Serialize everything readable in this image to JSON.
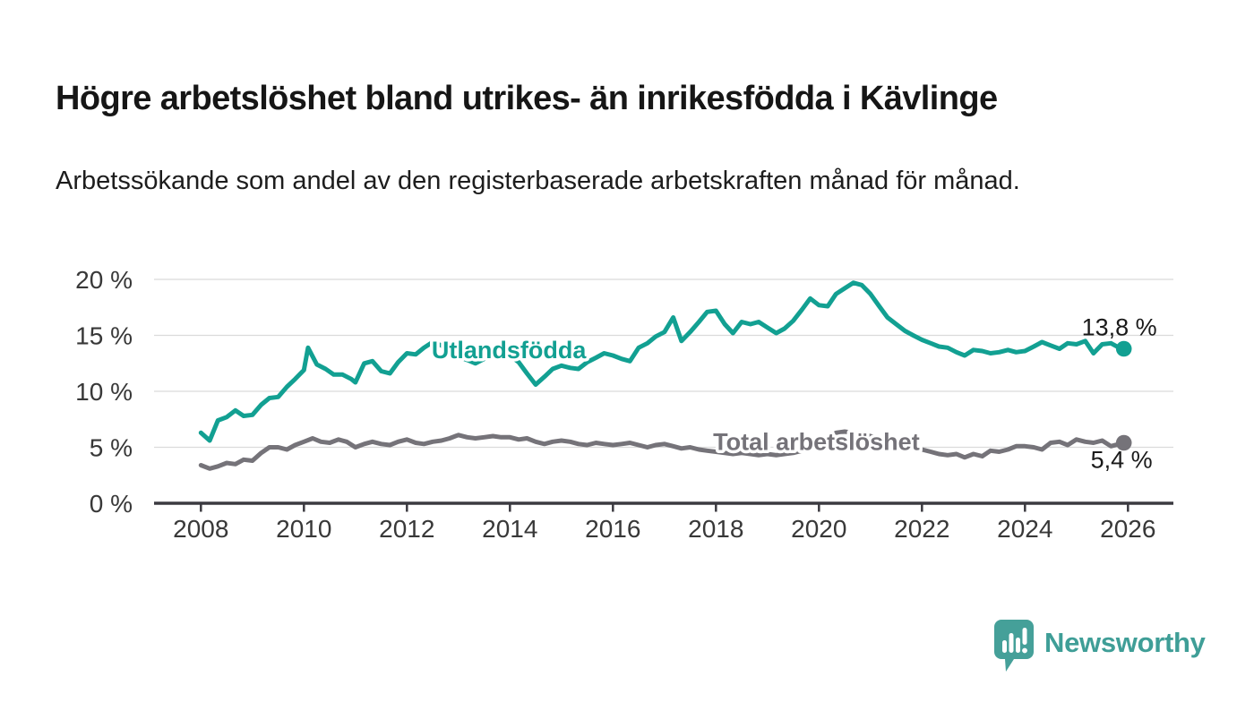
{
  "header": {
    "title": "Högre arbetslöshet bland utrikes- än inrikesfödda i Kävlinge",
    "subtitle": "Arbetssökande som andel av den registerbaserade arbetskraften månad för månad."
  },
  "chart_data": {
    "type": "line",
    "title": "Högre arbetslöshet bland utrikes- än inrikesfödda i Kävlinge",
    "xlabel": "",
    "ylabel": "Arbetssökande som andel av den registerbaserade arbetskraften",
    "xlim": [
      2007.1,
      2026.9
    ],
    "ylim": [
      0,
      20
    ],
    "grid": "horizontal",
    "legend_position": "inline-labels",
    "y_ticks": [
      {
        "value": 0,
        "label": "0 %"
      },
      {
        "value": 5,
        "label": "5 %"
      },
      {
        "value": 10,
        "label": "10 %"
      },
      {
        "value": 15,
        "label": "15 %"
      },
      {
        "value": 20,
        "label": "20 %"
      }
    ],
    "x_ticks": [
      {
        "value": 2008,
        "label": "2008"
      },
      {
        "value": 2010,
        "label": "2010"
      },
      {
        "value": 2012,
        "label": "2012"
      },
      {
        "value": 2014,
        "label": "2014"
      },
      {
        "value": 2016,
        "label": "2016"
      },
      {
        "value": 2018,
        "label": "2018"
      },
      {
        "value": 2020,
        "label": "2020"
      },
      {
        "value": 2022,
        "label": "2022"
      },
      {
        "value": 2024,
        "label": "2024"
      },
      {
        "value": 2026,
        "label": "2026"
      }
    ],
    "series": [
      {
        "name": "Utlandsfödda",
        "color": "#12a092",
        "end_label": "13,8 %",
        "end_value": 13.8,
        "label_pos": {
          "x": 2013.98,
          "y": 13.7
        },
        "points": [
          [
            2008.0,
            6.3
          ],
          [
            2008.17,
            5.6
          ],
          [
            2008.33,
            7.4
          ],
          [
            2008.5,
            7.7
          ],
          [
            2008.67,
            8.3
          ],
          [
            2008.83,
            7.8
          ],
          [
            2009.0,
            7.9
          ],
          [
            2009.17,
            8.8
          ],
          [
            2009.33,
            9.4
          ],
          [
            2009.5,
            9.5
          ],
          [
            2009.67,
            10.4
          ],
          [
            2009.83,
            11.1
          ],
          [
            2010.0,
            11.9
          ],
          [
            2010.08,
            13.9
          ],
          [
            2010.25,
            12.4
          ],
          [
            2010.42,
            12.0
          ],
          [
            2010.58,
            11.5
          ],
          [
            2010.75,
            11.5
          ],
          [
            2010.92,
            11.1
          ],
          [
            2011.0,
            10.8
          ],
          [
            2011.17,
            12.5
          ],
          [
            2011.33,
            12.7
          ],
          [
            2011.5,
            11.8
          ],
          [
            2011.67,
            11.6
          ],
          [
            2011.83,
            12.6
          ],
          [
            2012.0,
            13.4
          ],
          [
            2012.17,
            13.3
          ],
          [
            2012.33,
            13.9
          ],
          [
            2012.5,
            14.4
          ],
          [
            2012.67,
            14.1
          ],
          [
            2012.83,
            13.6
          ],
          [
            2013.0,
            13.1
          ],
          [
            2013.17,
            12.8
          ],
          [
            2013.33,
            12.5
          ],
          [
            2013.5,
            12.9
          ],
          [
            2013.67,
            13.3
          ],
          [
            2013.83,
            13.4
          ],
          [
            2014.0,
            13.2
          ],
          [
            2014.17,
            12.6
          ],
          [
            2014.33,
            11.6
          ],
          [
            2014.5,
            10.6
          ],
          [
            2014.67,
            11.3
          ],
          [
            2014.83,
            12.0
          ],
          [
            2015.0,
            12.3
          ],
          [
            2015.17,
            12.1
          ],
          [
            2015.33,
            12.0
          ],
          [
            2015.5,
            12.6
          ],
          [
            2015.67,
            13.0
          ],
          [
            2015.83,
            13.4
          ],
          [
            2016.0,
            13.2
          ],
          [
            2016.17,
            12.9
          ],
          [
            2016.33,
            12.7
          ],
          [
            2016.5,
            13.9
          ],
          [
            2016.67,
            14.3
          ],
          [
            2016.83,
            14.9
          ],
          [
            2017.0,
            15.3
          ],
          [
            2017.17,
            16.6
          ],
          [
            2017.33,
            14.5
          ],
          [
            2017.5,
            15.3
          ],
          [
            2017.67,
            16.2
          ],
          [
            2017.83,
            17.1
          ],
          [
            2018.0,
            17.2
          ],
          [
            2018.17,
            16.0
          ],
          [
            2018.33,
            15.2
          ],
          [
            2018.5,
            16.2
          ],
          [
            2018.67,
            16.0
          ],
          [
            2018.83,
            16.2
          ],
          [
            2019.0,
            15.7
          ],
          [
            2019.17,
            15.2
          ],
          [
            2019.33,
            15.6
          ],
          [
            2019.5,
            16.3
          ],
          [
            2019.67,
            17.3
          ],
          [
            2019.83,
            18.3
          ],
          [
            2020.0,
            17.7
          ],
          [
            2020.17,
            17.6
          ],
          [
            2020.33,
            18.7
          ],
          [
            2020.5,
            19.2
          ],
          [
            2020.67,
            19.7
          ],
          [
            2020.83,
            19.5
          ],
          [
            2021.0,
            18.7
          ],
          [
            2021.17,
            17.6
          ],
          [
            2021.33,
            16.6
          ],
          [
            2021.5,
            16.0
          ],
          [
            2021.67,
            15.4
          ],
          [
            2021.83,
            15.0
          ],
          [
            2022.0,
            14.6
          ],
          [
            2022.17,
            14.3
          ],
          [
            2022.33,
            14.0
          ],
          [
            2022.5,
            13.9
          ],
          [
            2022.67,
            13.5
          ],
          [
            2022.83,
            13.2
          ],
          [
            2023.0,
            13.7
          ],
          [
            2023.17,
            13.6
          ],
          [
            2023.33,
            13.4
          ],
          [
            2023.5,
            13.5
          ],
          [
            2023.67,
            13.7
          ],
          [
            2023.83,
            13.5
          ],
          [
            2024.0,
            13.6
          ],
          [
            2024.17,
            14.0
          ],
          [
            2024.33,
            14.4
          ],
          [
            2024.5,
            14.1
          ],
          [
            2024.67,
            13.8
          ],
          [
            2024.83,
            14.3
          ],
          [
            2025.0,
            14.2
          ],
          [
            2025.17,
            14.5
          ],
          [
            2025.33,
            13.4
          ],
          [
            2025.5,
            14.2
          ],
          [
            2025.67,
            14.3
          ],
          [
            2025.83,
            13.9
          ],
          [
            2025.92,
            13.8
          ]
        ]
      },
      {
        "name": "Total arbetslöshet",
        "color": "#757379",
        "end_label": "5,4 %",
        "end_value": 5.4,
        "label_pos": {
          "x": 2019.95,
          "y": 5.5
        },
        "points": [
          [
            2008.0,
            3.4
          ],
          [
            2008.17,
            3.1
          ],
          [
            2008.33,
            3.3
          ],
          [
            2008.5,
            3.6
          ],
          [
            2008.67,
            3.5
          ],
          [
            2008.83,
            3.9
          ],
          [
            2009.0,
            3.8
          ],
          [
            2009.17,
            4.5
          ],
          [
            2009.33,
            5.0
          ],
          [
            2009.5,
            5.0
          ],
          [
            2009.67,
            4.8
          ],
          [
            2009.83,
            5.2
          ],
          [
            2010.0,
            5.5
          ],
          [
            2010.17,
            5.8
          ],
          [
            2010.33,
            5.5
          ],
          [
            2010.5,
            5.4
          ],
          [
            2010.67,
            5.7
          ],
          [
            2010.83,
            5.5
          ],
          [
            2011.0,
            5.0
          ],
          [
            2011.17,
            5.3
          ],
          [
            2011.33,
            5.5
          ],
          [
            2011.5,
            5.3
          ],
          [
            2011.67,
            5.2
          ],
          [
            2011.83,
            5.5
          ],
          [
            2012.0,
            5.7
          ],
          [
            2012.17,
            5.4
          ],
          [
            2012.33,
            5.3
          ],
          [
            2012.5,
            5.5
          ],
          [
            2012.67,
            5.6
          ],
          [
            2012.83,
            5.8
          ],
          [
            2013.0,
            6.1
          ],
          [
            2013.17,
            5.9
          ],
          [
            2013.33,
            5.8
          ],
          [
            2013.5,
            5.9
          ],
          [
            2013.67,
            6.0
          ],
          [
            2013.83,
            5.9
          ],
          [
            2014.0,
            5.9
          ],
          [
            2014.17,
            5.7
          ],
          [
            2014.33,
            5.8
          ],
          [
            2014.5,
            5.5
          ],
          [
            2014.67,
            5.3
          ],
          [
            2014.83,
            5.5
          ],
          [
            2015.0,
            5.6
          ],
          [
            2015.17,
            5.5
          ],
          [
            2015.33,
            5.3
          ],
          [
            2015.5,
            5.2
          ],
          [
            2015.67,
            5.4
          ],
          [
            2015.83,
            5.3
          ],
          [
            2016.0,
            5.2
          ],
          [
            2016.17,
            5.3
          ],
          [
            2016.33,
            5.4
          ],
          [
            2016.5,
            5.2
          ],
          [
            2016.67,
            5.0
          ],
          [
            2016.83,
            5.2
          ],
          [
            2017.0,
            5.3
          ],
          [
            2017.17,
            5.1
          ],
          [
            2017.33,
            4.9
          ],
          [
            2017.5,
            5.0
          ],
          [
            2017.67,
            4.8
          ],
          [
            2017.83,
            4.7
          ],
          [
            2018.0,
            4.6
          ],
          [
            2018.17,
            4.5
          ],
          [
            2018.33,
            4.4
          ],
          [
            2018.5,
            4.5
          ],
          [
            2018.67,
            4.4
          ],
          [
            2018.83,
            4.3
          ],
          [
            2019.0,
            4.4
          ],
          [
            2019.17,
            4.3
          ],
          [
            2019.33,
            4.4
          ],
          [
            2019.5,
            4.5
          ],
          [
            2019.67,
            4.7
          ],
          [
            2019.83,
            4.9
          ],
          [
            2020.0,
            5.2
          ],
          [
            2020.17,
            5.6
          ],
          [
            2020.33,
            6.3
          ],
          [
            2020.5,
            6.4
          ],
          [
            2020.67,
            6.3
          ],
          [
            2020.83,
            6.1
          ],
          [
            2021.0,
            6.0
          ],
          [
            2021.17,
            5.8
          ],
          [
            2021.33,
            5.6
          ],
          [
            2021.5,
            5.4
          ],
          [
            2021.67,
            5.2
          ],
          [
            2021.83,
            5.0
          ],
          [
            2022.0,
            4.8
          ],
          [
            2022.17,
            4.6
          ],
          [
            2022.33,
            4.4
          ],
          [
            2022.5,
            4.3
          ],
          [
            2022.67,
            4.4
          ],
          [
            2022.83,
            4.1
          ],
          [
            2023.0,
            4.4
          ],
          [
            2023.17,
            4.2
          ],
          [
            2023.33,
            4.7
          ],
          [
            2023.5,
            4.6
          ],
          [
            2023.67,
            4.8
          ],
          [
            2023.83,
            5.1
          ],
          [
            2024.0,
            5.1
          ],
          [
            2024.17,
            5.0
          ],
          [
            2024.33,
            4.8
          ],
          [
            2024.5,
            5.4
          ],
          [
            2024.67,
            5.5
          ],
          [
            2024.83,
            5.2
          ],
          [
            2025.0,
            5.7
          ],
          [
            2025.17,
            5.5
          ],
          [
            2025.33,
            5.4
          ],
          [
            2025.5,
            5.6
          ],
          [
            2025.67,
            5.1
          ],
          [
            2025.83,
            5.3
          ],
          [
            2025.92,
            5.4
          ]
        ]
      }
    ]
  },
  "footer": {
    "brand": "Newsworthy"
  },
  "colors": {
    "accent_teal": "#12a092",
    "line_gray": "#757379",
    "logo_teal": "#45a099",
    "value_label": "#1a1a1a",
    "axis_text": "#383838",
    "grid": "#dbdbdb",
    "axis_line": "#3b3a40",
    "background": "#ffffff"
  }
}
